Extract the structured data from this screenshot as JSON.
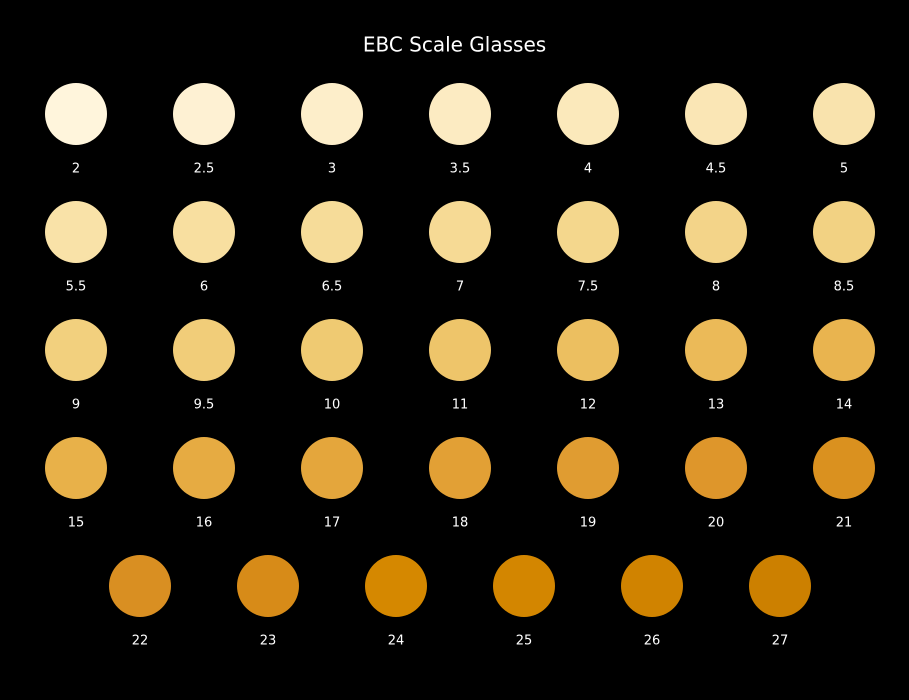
{
  "title": "EBC Scale Glasses",
  "rows": [
    [
      {
        "label": "2",
        "color": "#fff5dc"
      },
      {
        "label": "2.5",
        "color": "#fef1d3"
      },
      {
        "label": "3",
        "color": "#fdeeca"
      },
      {
        "label": "3.5",
        "color": "#fcebc2"
      },
      {
        "label": "4",
        "color": "#fbe9bb"
      },
      {
        "label": "4.5",
        "color": "#fae6b5"
      },
      {
        "label": "5",
        "color": "#f9e3ad"
      }
    ],
    [
      {
        "label": "5.5",
        "color": "#f9e2a8"
      },
      {
        "label": "6",
        "color": "#f8dfa0"
      },
      {
        "label": "6.5",
        "color": "#f6dc99"
      },
      {
        "label": "7",
        "color": "#f6da95"
      },
      {
        "label": "7.5",
        "color": "#f4d78d"
      },
      {
        "label": "8",
        "color": "#f3d489"
      },
      {
        "label": "8.5",
        "color": "#f2d283"
      }
    ],
    [
      {
        "label": "9",
        "color": "#f2d07e"
      },
      {
        "label": "9.5",
        "color": "#f1cd79"
      },
      {
        "label": "10",
        "color": "#efca72"
      },
      {
        "label": "11",
        "color": "#eec56a"
      },
      {
        "label": "12",
        "color": "#ecbf60"
      },
      {
        "label": "13",
        "color": "#ebba58"
      },
      {
        "label": "14",
        "color": "#e9b44f"
      }
    ],
    [
      {
        "label": "15",
        "color": "#e8b149"
      },
      {
        "label": "16",
        "color": "#e6ab42"
      },
      {
        "label": "17",
        "color": "#e4a63c"
      },
      {
        "label": "18",
        "color": "#e2a035"
      },
      {
        "label": "19",
        "color": "#e09c31"
      },
      {
        "label": "20",
        "color": "#de962b"
      },
      {
        "label": "21",
        "color": "#da911f"
      }
    ],
    [
      {
        "label": "22",
        "color": "#d98f22"
      },
      {
        "label": "23",
        "color": "#d78b18"
      },
      {
        "label": "24",
        "color": "#d58800"
      },
      {
        "label": "25",
        "color": "#d38600"
      },
      {
        "label": "26",
        "color": "#d08300"
      },
      {
        "label": "27",
        "color": "#cc8000"
      }
    ]
  ]
}
